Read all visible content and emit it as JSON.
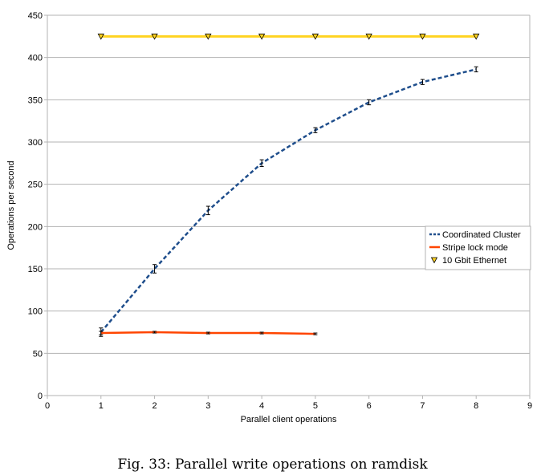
{
  "caption": "Fig. 33: Parallel write operations on ramdisk",
  "chart_data": {
    "type": "line",
    "xlabel": "Parallel client operations",
    "ylabel": "Operations per second",
    "xlim": [
      0,
      9
    ],
    "ylim": [
      0,
      450
    ],
    "xticks": [
      0,
      1,
      2,
      3,
      4,
      5,
      6,
      7,
      8,
      9
    ],
    "yticks": [
      0,
      50,
      100,
      150,
      200,
      250,
      300,
      350,
      400,
      450
    ],
    "grid": "horizontal",
    "legend_position": "right",
    "series": [
      {
        "name": "Coordinated Cluster",
        "color": "#1f4e8c",
        "style": "dashed",
        "x": [
          1,
          2,
          3,
          4,
          5,
          6,
          7,
          8
        ],
        "y": [
          75,
          150,
          219,
          275,
          314,
          347,
          371,
          386
        ],
        "err": [
          5,
          5,
          5,
          4,
          3,
          3,
          3,
          3
        ]
      },
      {
        "name": "Stripe lock mode",
        "color": "#ff4500",
        "style": "solid",
        "x": [
          1,
          2,
          3,
          4,
          5
        ],
        "y": [
          74,
          75,
          74,
          74,
          73
        ],
        "err": [
          2,
          1,
          1,
          1,
          1
        ]
      },
      {
        "name": "10 Gbit Ethernet",
        "color": "#ffd320",
        "style": "solid",
        "marker": "triangle-down",
        "x": [
          1,
          2,
          3,
          4,
          5,
          6,
          7,
          8
        ],
        "y": [
          425,
          425,
          425,
          425,
          425,
          425,
          425,
          425
        ]
      }
    ]
  }
}
